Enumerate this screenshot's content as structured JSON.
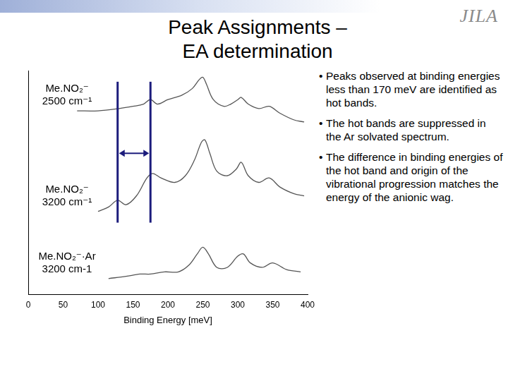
{
  "slide": {
    "title": [
      "Peak Assignments –",
      "EA determination"
    ],
    "logo": "JILA",
    "bullets": [
      "Peaks observed at binding energies less than 170 meV are identified as hot bands.",
      "The hot bands are suppressed in the Ar solvated spectrum.",
      "The difference in binding energies of the hot band and origin of the vibrational progression matches the energy of the anionic wag."
    ]
  },
  "chart_data": {
    "type": "line",
    "x_label": "Binding Energy [meV]",
    "xlim": [
      0,
      400
    ],
    "xticks": [
      0,
      50,
      100,
      150,
      200,
      250,
      300,
      350,
      400
    ],
    "ylim": [
      0,
      100
    ],
    "grid": false,
    "tick_labels": "x",
    "series": [
      {
        "name": "Me.NO₂⁻ 2500 cm⁻¹",
        "color": "#555555",
        "x": [
          70,
          100,
          130,
          150,
          165,
          175,
          185,
          200,
          220,
          235,
          245,
          250,
          255,
          265,
          280,
          290,
          300,
          305,
          315,
          330,
          345,
          360,
          380,
          395
        ],
        "values": [
          82,
          82,
          83,
          84,
          85,
          87,
          85,
          87,
          89,
          92,
          96,
          97,
          94,
          87,
          84,
          85,
          87,
          88,
          85,
          83,
          84,
          81,
          78,
          77
        ]
      },
      {
        "name": "Me.NO₂⁻ 3200 cm⁻¹",
        "color": "#555555",
        "x": [
          100,
          115,
          128,
          140,
          155,
          170,
          178,
          190,
          210,
          225,
          238,
          248,
          253,
          260,
          270,
          285,
          298,
          305,
          315,
          330,
          345,
          360,
          380,
          395
        ],
        "values": [
          37,
          39,
          42,
          40,
          44,
          52,
          54,
          52,
          50,
          53,
          60,
          68,
          69,
          63,
          55,
          53,
          56,
          59,
          53,
          50,
          52,
          48,
          45,
          44
        ]
      },
      {
        "name": "Me.NO₂⁻·Ar 3200 cm-1",
        "color": "#555555",
        "x": [
          115,
          140,
          160,
          175,
          195,
          215,
          230,
          242,
          250,
          258,
          270,
          285,
          300,
          308,
          318,
          335,
          350,
          370,
          390
        ],
        "values": [
          7,
          8,
          9,
          9,
          10,
          10,
          13,
          18,
          21,
          18,
          12,
          12,
          17,
          18,
          14,
          12,
          14,
          11,
          10
        ]
      }
    ],
    "markers": {
      "color": "#1c1c7c",
      "x": [
        128,
        175
      ],
      "y_range": [
        32,
        95
      ],
      "arrow_y": 63
    }
  }
}
